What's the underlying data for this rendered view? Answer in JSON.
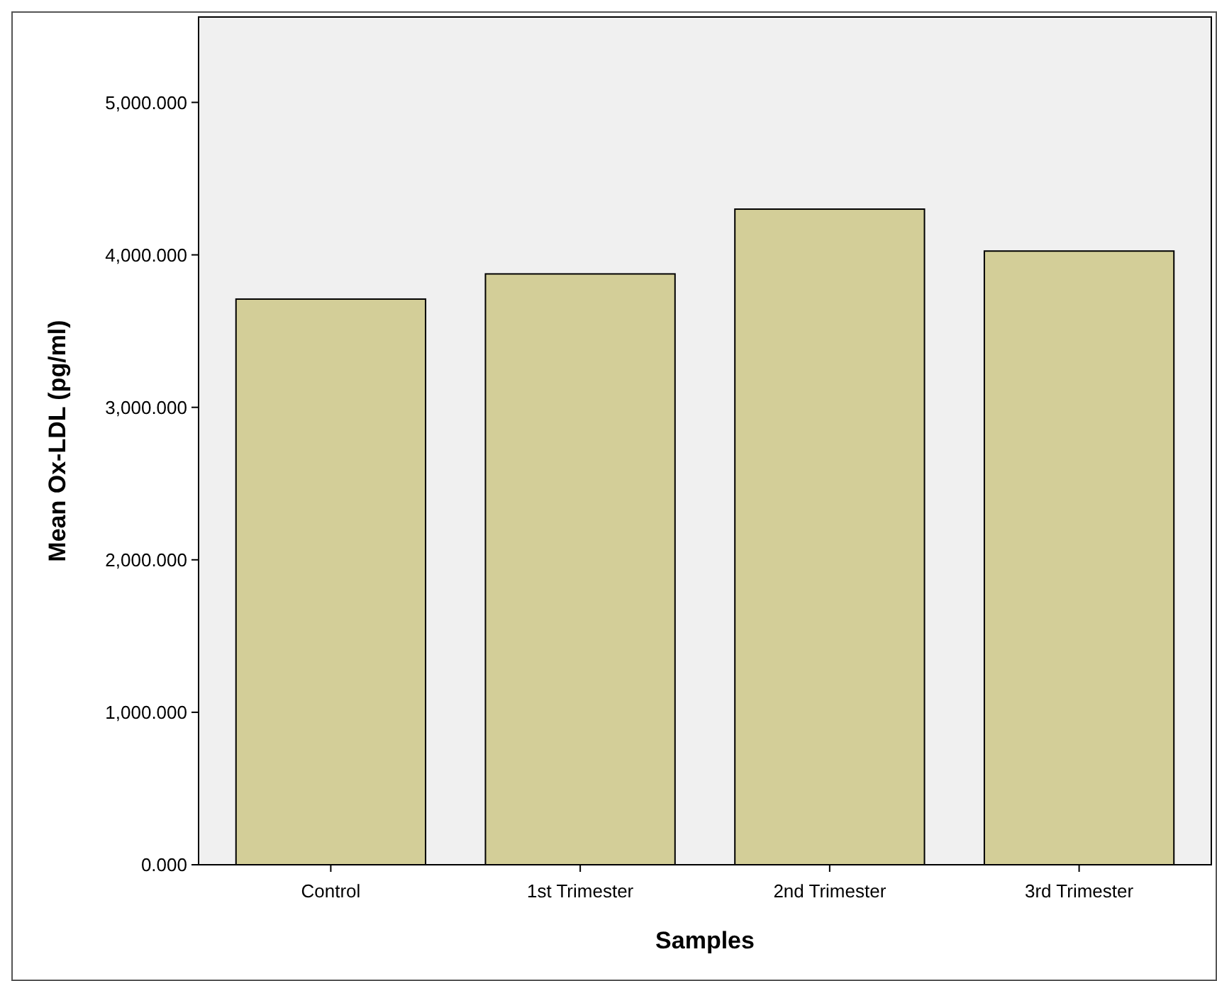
{
  "chart_data": {
    "type": "bar",
    "xlabel": "Samples",
    "ylabel": "Mean Ox-LDL (pg/ml)",
    "categories": [
      "Control",
      "1st Trimester",
      "2nd Trimester",
      "3rd Trimester"
    ],
    "values": [
      3710,
      3875,
      4300,
      4025
    ],
    "color": "#d3ce98",
    "ylim": [
      0,
      5560
    ],
    "yticks": [
      {
        "value": 0,
        "label": "0.000"
      },
      {
        "value": 1000,
        "label": "1,000.000"
      },
      {
        "value": 2000,
        "label": "2,000.000"
      },
      {
        "value": 3000,
        "label": "3,000.000"
      },
      {
        "value": 4000,
        "label": "4,000.000"
      },
      {
        "value": 5000,
        "label": "5,000.000"
      }
    ],
    "grid": false
  }
}
